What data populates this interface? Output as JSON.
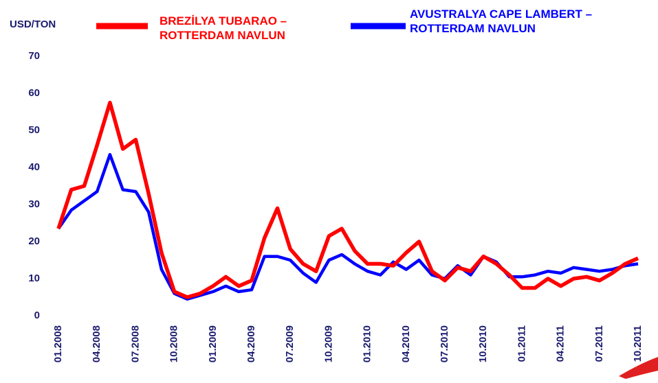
{
  "chart_data": {
    "type": "line",
    "ylabel": "USD/TON",
    "categories": [
      "01.2008",
      null,
      null,
      "04.2008",
      null,
      null,
      "07.2008",
      null,
      null,
      "10.2008",
      null,
      null,
      "01.2009",
      null,
      null,
      "04.2009",
      null,
      null,
      "07.2009",
      null,
      null,
      "10.2009",
      null,
      null,
      "01.2010",
      null,
      null,
      "04.2010",
      null,
      null,
      "07.2010",
      null,
      null,
      "10.2010",
      null,
      null,
      "01.2011",
      null,
      null,
      "04.2011",
      null,
      null,
      "07.2011",
      null,
      null,
      "10.2011"
    ],
    "series": [
      {
        "name": "BREZİLYA TUBARAO – ROTTERDAM NAVLUN",
        "color": "#ff0000",
        "values": [
          23.5,
          34,
          35,
          46,
          57.5,
          45,
          47.5,
          33,
          17,
          6.5,
          5,
          6,
          8,
          10.5,
          8,
          9.5,
          21,
          29,
          18,
          14,
          12,
          21.5,
          23.5,
          17.5,
          14,
          14,
          13.5,
          17,
          20,
          12,
          9.5,
          13,
          12,
          16,
          14,
          11,
          7.5,
          7.5,
          10,
          8,
          10,
          10.5,
          9.5,
          11.5,
          14,
          15.5
        ]
      },
      {
        "name": "AVUSTRALYA CAPE LAMBERT – ROTTERDAM NAVLUN",
        "color": "#0000ff",
        "values": [
          23.5,
          28.5,
          31,
          33.5,
          43.5,
          34,
          33.5,
          28,
          12.5,
          6,
          4.5,
          5.5,
          6.5,
          8,
          6.5,
          7,
          16,
          16,
          15,
          11.5,
          9,
          15,
          16.5,
          14,
          12,
          11,
          14.5,
          12.5,
          15,
          11,
          10,
          13.5,
          11,
          16,
          14.5,
          10.5,
          10.5,
          11,
          12,
          11.5,
          13,
          12.5,
          12,
          12.5,
          13.5,
          14
        ]
      }
    ],
    "ylim": [
      0,
      70
    ],
    "yticks": [
      0,
      10,
      20,
      30,
      40,
      50,
      60,
      70
    ],
    "grid": false
  }
}
